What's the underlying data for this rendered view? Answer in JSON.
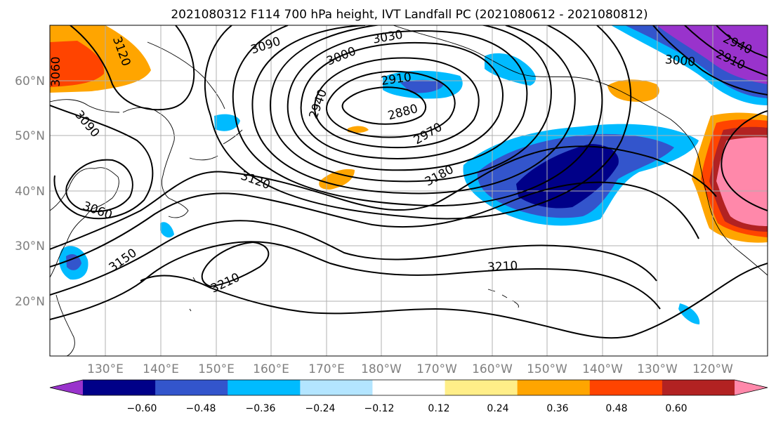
{
  "title": "2021080312 F114 700 hPa height, IVT Landfall PC (2021080612 - 2021080812)",
  "map": {
    "projection": "PlateCarree",
    "lon_range": [
      120,
      250
    ],
    "lat_range": [
      10,
      70
    ],
    "lat_labels": [
      "60°N",
      "50°N",
      "40°N",
      "30°N",
      "20°N"
    ],
    "lon_labels": [
      "130°E",
      "140°E",
      "150°E",
      "160°E",
      "170°E",
      "180°W",
      "170°W",
      "160°W",
      "150°W",
      "140°W",
      "130°W",
      "120°W"
    ],
    "height_contour_labels": [
      "3120",
      "3090",
      "3060",
      "3060",
      "3090",
      "3030",
      "3000",
      "2940",
      "2910",
      "2880",
      "2970",
      "3120",
      "3180",
      "3150",
      "3210",
      "3210",
      "3000",
      "2940",
      "2910"
    ]
  },
  "colorbar": {
    "colors": [
      "#9933cc",
      "#000088",
      "#3355cc",
      "#00bbff",
      "#b3e5ff",
      "#ffffff",
      "#ffee88",
      "#ffa500",
      "#ff4400",
      "#b22222",
      "#ff88aa"
    ],
    "tick_labels": [
      "−0.60",
      "−0.48",
      "−0.36",
      "−0.24",
      "−0.12",
      "0.12",
      "0.24",
      "0.36",
      "0.48",
      "0.60"
    ]
  }
}
